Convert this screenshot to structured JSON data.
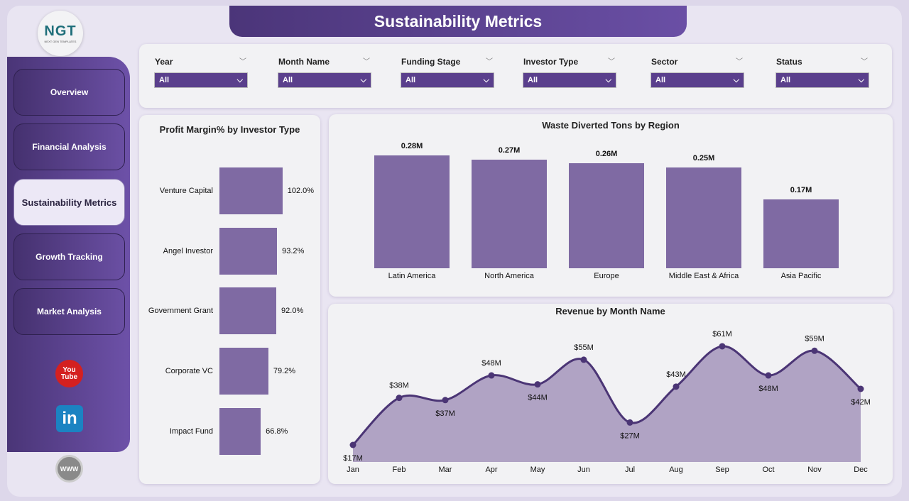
{
  "header": {
    "title": "Sustainability Metrics"
  },
  "logo": {
    "text": "NGT",
    "subtitle": "NEXT GEN TEMPLATES"
  },
  "nav": [
    {
      "label": "Overview"
    },
    {
      "label": "Financial Analysis"
    },
    {
      "label": "Sustainability Metrics",
      "active": true
    },
    {
      "label": "Growth Tracking"
    },
    {
      "label": "Market Analysis"
    }
  ],
  "social": {
    "youtube": "You Tube",
    "linkedin": "in",
    "web": "WWW"
  },
  "filters": [
    {
      "label": "Year",
      "value": "All"
    },
    {
      "label": "Month Name",
      "value": "All"
    },
    {
      "label": "Funding Stage",
      "value": "All"
    },
    {
      "label": "Investor Type",
      "value": "All"
    },
    {
      "label": "Sector",
      "value": "All"
    },
    {
      "label": "Status",
      "value": "All"
    }
  ],
  "chart_data": [
    {
      "type": "bar",
      "orientation": "horizontal",
      "title": "Profit Margin% by Investor Type",
      "categories": [
        "Venture Capital",
        "Angel Investor",
        "Government Grant",
        "Corporate VC",
        "Impact Fund"
      ],
      "values": [
        102.0,
        93.2,
        92.0,
        79.2,
        66.8
      ],
      "labels": [
        "102.0%",
        "93.2%",
        "92.0%",
        "79.2%",
        "66.8%"
      ],
      "color": "#7f6aa3"
    },
    {
      "type": "bar",
      "title": "Waste Diverted Tons by Region",
      "categories": [
        "Latin America",
        "North America",
        "Europe",
        "Middle East & Africa",
        "Asia Pacific"
      ],
      "values": [
        0.28,
        0.27,
        0.26,
        0.25,
        0.17
      ],
      "labels": [
        "0.28M",
        "0.27M",
        "0.26M",
        "0.25M",
        "0.17M"
      ],
      "unit": "M",
      "color": "#7f6aa3"
    },
    {
      "type": "area",
      "title": "Revenue by Month Name",
      "categories": [
        "Jan",
        "Feb",
        "Mar",
        "Apr",
        "May",
        "Jun",
        "Jul",
        "Aug",
        "Sep",
        "Oct",
        "Nov",
        "Dec"
      ],
      "values": [
        17,
        38,
        37,
        48,
        44,
        55,
        27,
        43,
        61,
        48,
        59,
        42
      ],
      "labels": [
        "$17M",
        "$38M",
        "$37M",
        "$48M",
        "$44M",
        "$55M",
        "$27M",
        "$43M",
        "$61M",
        "$48M",
        "$59M",
        "$42M"
      ],
      "label_pos": [
        "below",
        "above",
        "below",
        "above",
        "below",
        "above",
        "below",
        "above",
        "above",
        "below",
        "above",
        "below"
      ],
      "unit": "$M",
      "line_color": "#4b3575",
      "fill_color": "#b0a3c4"
    }
  ]
}
